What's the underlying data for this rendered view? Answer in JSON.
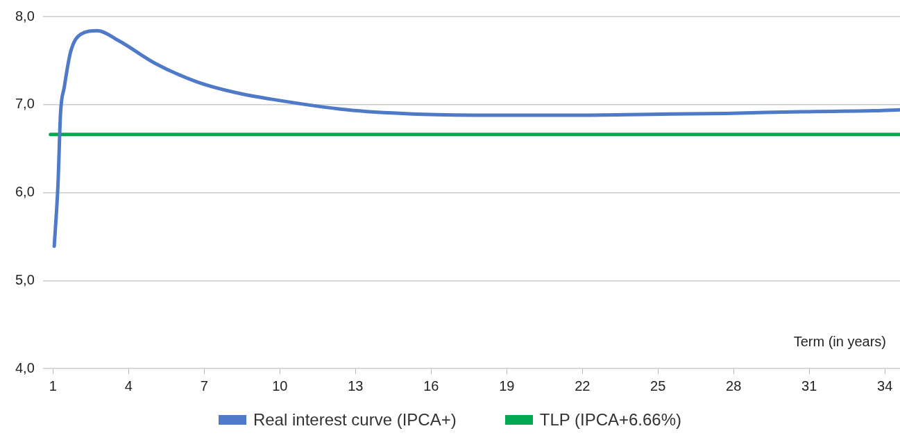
{
  "chart_data": {
    "type": "line",
    "xlabel": "Term (in years)",
    "xlim": [
      0.6,
      34.6
    ],
    "xticks": [
      1,
      4,
      7,
      10,
      13,
      16,
      19,
      22,
      25,
      28,
      31,
      34
    ],
    "ylim": [
      4,
      8
    ],
    "yticks": [
      {
        "value": 4,
        "label": "4,0"
      },
      {
        "value": 5,
        "label": "5,0"
      },
      {
        "value": 6,
        "label": "6,0"
      },
      {
        "value": 7,
        "label": "7,0"
      },
      {
        "value": 8,
        "label": "8,0"
      }
    ],
    "grid": "y",
    "legend": "bottom",
    "marker": "none",
    "line_style": "solid",
    "series": [
      {
        "name": "Real interest curve (IPCA+)",
        "color": "#4f7ac7",
        "x": [
          1.05,
          1.2,
          1.3,
          1.45,
          1.7,
          2.1,
          2.75,
          3.65,
          5.05,
          6.7,
          8.2,
          9.7,
          12.7,
          15.7,
          18.7,
          21.7,
          24.7,
          27.7,
          30.7,
          33.6,
          34.6
        ],
        "values": [
          5.39,
          6.1,
          6.9,
          7.2,
          7.6,
          7.8,
          7.84,
          7.72,
          7.47,
          7.26,
          7.14,
          7.06,
          6.94,
          6.89,
          6.88,
          6.88,
          6.89,
          6.9,
          6.92,
          6.93,
          6.94
        ]
      },
      {
        "name": "TLP (IPCA+6.66%)",
        "color": "#00a84f",
        "x": [
          0.9,
          34.6
        ],
        "values": [
          6.66,
          6.66
        ]
      }
    ]
  }
}
